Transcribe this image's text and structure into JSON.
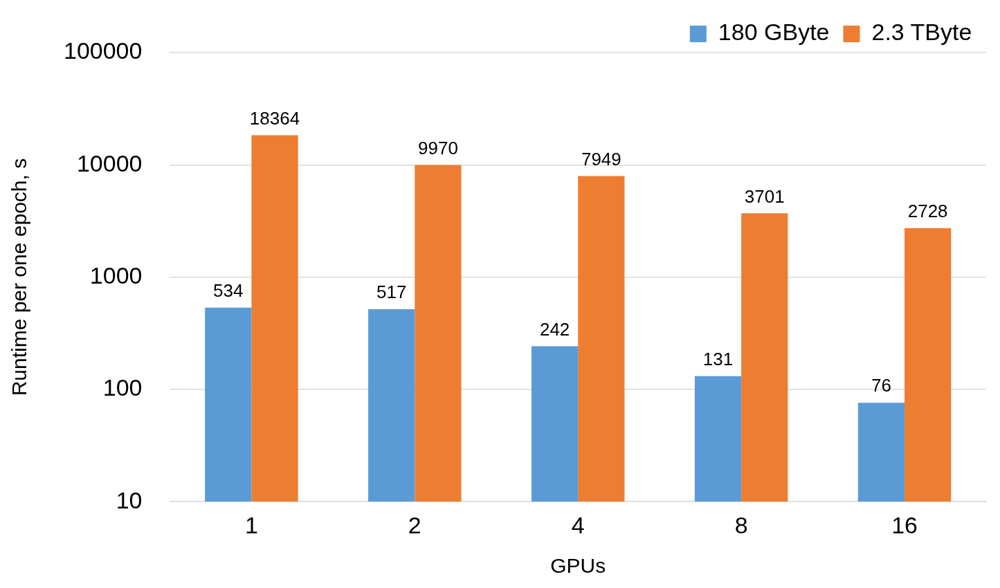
{
  "chart_data": {
    "type": "bar",
    "xlabel": "GPUs",
    "ylabel": "Runtime per one epoch, s",
    "categories": [
      "1",
      "2",
      "4",
      "8",
      "16"
    ],
    "series": [
      {
        "name": "180 GByte",
        "color": "#5b9bd5",
        "values": [
          534,
          517,
          242,
          131,
          76
        ]
      },
      {
        "name": "2.3 TByte",
        "color": "#ed7d31",
        "values": [
          18364,
          9970,
          7949,
          3701,
          2728
        ]
      }
    ],
    "log": "y",
    "ylim": [
      10,
      100000
    ],
    "yticks": [
      10,
      100,
      1000,
      10000,
      100000
    ],
    "grid": "y",
    "legend": "top right",
    "data_labels": true
  }
}
